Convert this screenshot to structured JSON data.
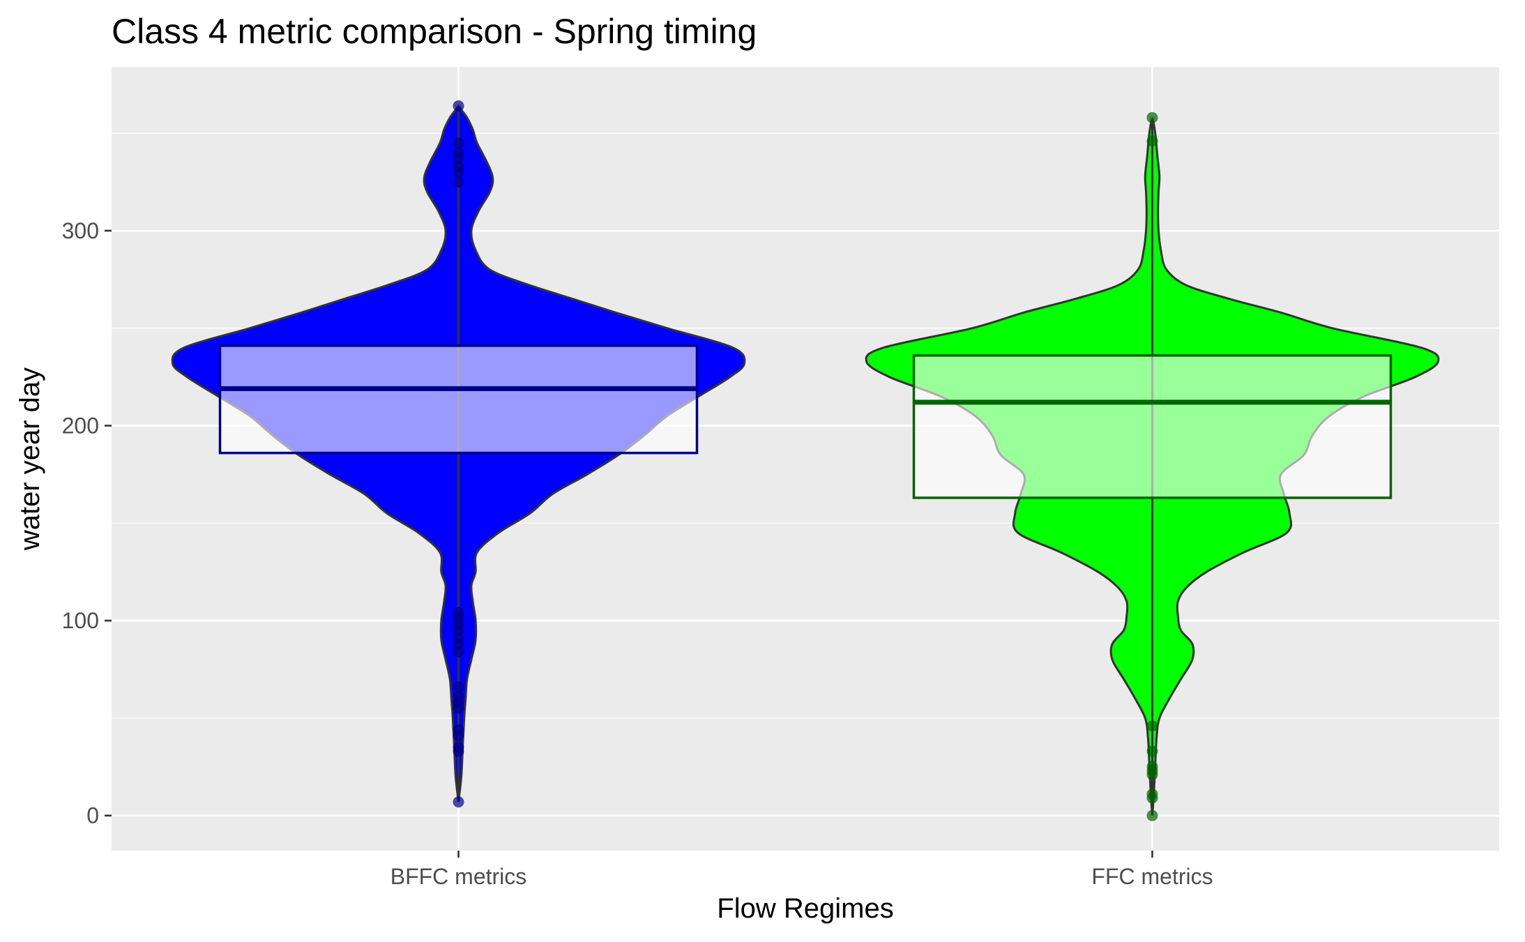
{
  "chart_data": {
    "type": "violin",
    "title": "Class 4 metric comparison - Spring timing",
    "xlabel": "Flow Regimes",
    "ylabel": "water year day",
    "ylim": [
      -18,
      384
    ],
    "yticks": [
      0,
      100,
      200,
      300
    ],
    "categories": [
      "BFFC metrics",
      "FFC metrics"
    ],
    "grid": true,
    "colors": {
      "panel": "#EBEBEB",
      "grid": "#FFFFFF",
      "text": "#000000",
      "tick_text": "#4D4D4D",
      "violin_outline": "#333333"
    },
    "series": [
      {
        "fill": "#0000FF",
        "box_color": "#00008B",
        "box": {
          "q1": 186,
          "median": 219,
          "q3": 241,
          "whisker_low": 7,
          "whisker_high": 364
        },
        "density": [
          [
            7,
            0.0
          ],
          [
            20,
            0.01
          ],
          [
            35,
            0.015
          ],
          [
            50,
            0.02
          ],
          [
            60,
            0.025
          ],
          [
            70,
            0.03
          ],
          [
            80,
            0.045
          ],
          [
            90,
            0.06
          ],
          [
            100,
            0.06
          ],
          [
            110,
            0.05
          ],
          [
            118,
            0.045
          ],
          [
            125,
            0.06
          ],
          [
            135,
            0.065
          ],
          [
            145,
            0.14
          ],
          [
            155,
            0.25
          ],
          [
            165,
            0.33
          ],
          [
            175,
            0.45
          ],
          [
            185,
            0.56
          ],
          [
            195,
            0.65
          ],
          [
            205,
            0.73
          ],
          [
            215,
            0.84
          ],
          [
            225,
            0.95
          ],
          [
            232,
            1.0
          ],
          [
            240,
            0.96
          ],
          [
            250,
            0.73
          ],
          [
            258,
            0.55
          ],
          [
            265,
            0.4
          ],
          [
            272,
            0.25
          ],
          [
            280,
            0.11
          ],
          [
            290,
            0.06
          ],
          [
            300,
            0.045
          ],
          [
            310,
            0.07
          ],
          [
            320,
            0.11
          ],
          [
            327,
            0.12
          ],
          [
            335,
            0.1
          ],
          [
            345,
            0.065
          ],
          [
            352,
            0.05
          ],
          [
            358,
            0.03
          ],
          [
            362,
            0.01
          ],
          [
            364,
            0.0
          ]
        ],
        "outliers": [
          7,
          33,
          35,
          41,
          44,
          55,
          58,
          61,
          66,
          84,
          88,
          91,
          95,
          98,
          101,
          104,
          325,
          330,
          333,
          337,
          340,
          345,
          364
        ]
      },
      {
        "fill": "#00FF00",
        "box_color": "#006400",
        "box": {
          "q1": 163,
          "median": 212,
          "q3": 236,
          "whisker_low": 0,
          "whisker_high": 358
        },
        "density": [
          [
            0,
            0.0
          ],
          [
            10,
            0.005
          ],
          [
            25,
            0.01
          ],
          [
            40,
            0.015
          ],
          [
            50,
            0.025
          ],
          [
            60,
            0.06
          ],
          [
            70,
            0.1
          ],
          [
            80,
            0.14
          ],
          [
            88,
            0.14
          ],
          [
            95,
            0.1
          ],
          [
            102,
            0.09
          ],
          [
            110,
            0.09
          ],
          [
            117,
            0.12
          ],
          [
            125,
            0.19
          ],
          [
            135,
            0.32
          ],
          [
            145,
            0.47
          ],
          [
            155,
            0.48
          ],
          [
            165,
            0.46
          ],
          [
            175,
            0.45
          ],
          [
            185,
            0.53
          ],
          [
            195,
            0.56
          ],
          [
            205,
            0.62
          ],
          [
            215,
            0.74
          ],
          [
            225,
            0.92
          ],
          [
            233,
            1.0
          ],
          [
            240,
            0.94
          ],
          [
            250,
            0.63
          ],
          [
            258,
            0.45
          ],
          [
            265,
            0.27
          ],
          [
            272,
            0.12
          ],
          [
            280,
            0.05
          ],
          [
            290,
            0.03
          ],
          [
            300,
            0.022
          ],
          [
            310,
            0.02
          ],
          [
            320,
            0.022
          ],
          [
            328,
            0.025
          ],
          [
            338,
            0.018
          ],
          [
            348,
            0.012
          ],
          [
            355,
            0.005
          ],
          [
            358,
            0.0
          ]
        ],
        "outliers": [
          0,
          9,
          11,
          21,
          23,
          25,
          33,
          46,
          346,
          358
        ]
      }
    ]
  }
}
